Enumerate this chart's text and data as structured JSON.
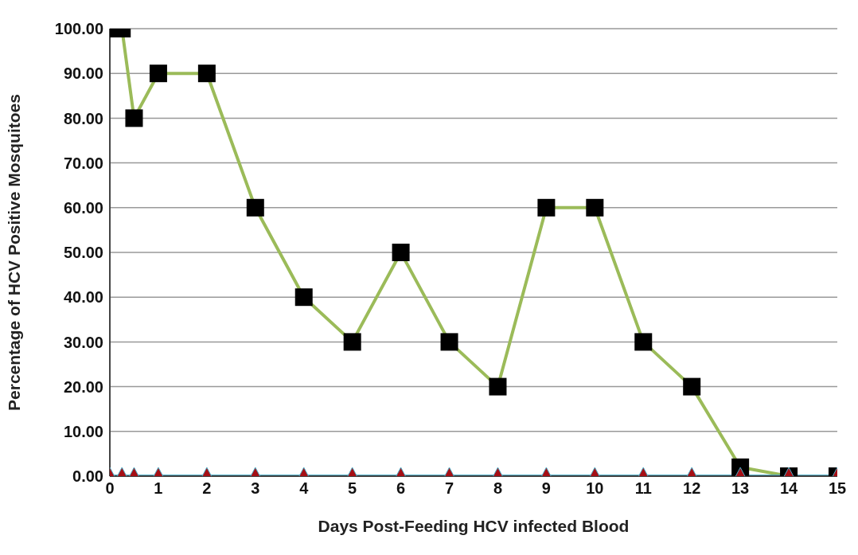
{
  "chart_data": {
    "type": "line",
    "xlabel": "Days Post-Feeding HCV infected Blood",
    "ylabel": "Percentage of HCV Positive Mosquitoes",
    "x": [
      0,
      0.25,
      0.5,
      1,
      2,
      3,
      4,
      5,
      6,
      7,
      8,
      9,
      10,
      11,
      12,
      13,
      14,
      15
    ],
    "series": [
      {
        "color": "#9bbb59",
        "marker": "square",
        "colors": [
          "#000000",
          "#000000",
          "#000000",
          "#000000",
          "#000000",
          "#000000",
          "#000000",
          "#000000",
          "#000000",
          "#000000",
          "#000000",
          "#000000",
          "#000000",
          "#000000",
          "#000000",
          "#000000",
          "#000000",
          "#000000"
        ],
        "values": [
          100,
          100,
          80,
          90,
          90,
          60,
          40,
          30,
          50,
          30,
          20,
          60,
          60,
          30,
          20,
          2,
          0,
          0
        ]
      },
      {
        "color": "#4bacc6",
        "marker": "triangle",
        "colors": [
          "#a50f15",
          "#a50f15",
          "#a50f15",
          "#a50f15",
          "#a50f15",
          "#a50f15",
          "#a50f15",
          "#a50f15",
          "#a50f15",
          "#a50f15",
          "#a50f15",
          "#a50f15",
          "#a50f15",
          "#a50f15",
          "#a50f15",
          "#a50f15",
          "#a50f15",
          "#a50f15"
        ],
        "values": [
          0,
          0,
          0,
          0,
          0,
          0,
          0,
          0,
          0,
          0,
          0,
          0,
          0,
          0,
          0,
          0,
          0,
          0
        ]
      }
    ],
    "xlim": [
      0,
      15
    ],
    "xticks": [
      0,
      1,
      2,
      3,
      4,
      5,
      6,
      7,
      8,
      9,
      10,
      11,
      12,
      13,
      14,
      15
    ],
    "ylim": [
      0,
      100
    ],
    "yticks": [
      {
        "value": 0,
        "label": "0.00"
      },
      {
        "value": 10,
        "label": "10.00"
      },
      {
        "value": 20,
        "label": "20.00"
      },
      {
        "value": 30,
        "label": "30.00"
      },
      {
        "value": 40,
        "label": "40.00"
      },
      {
        "value": 50,
        "label": "50.00"
      },
      {
        "value": 60,
        "label": "60.00"
      },
      {
        "value": 70,
        "label": "70.00"
      },
      {
        "value": 80,
        "label": "80.00"
      },
      {
        "value": 90,
        "label": "90.00"
      },
      {
        "value": 100,
        "label": "100.00"
      }
    ],
    "grid": "y"
  }
}
